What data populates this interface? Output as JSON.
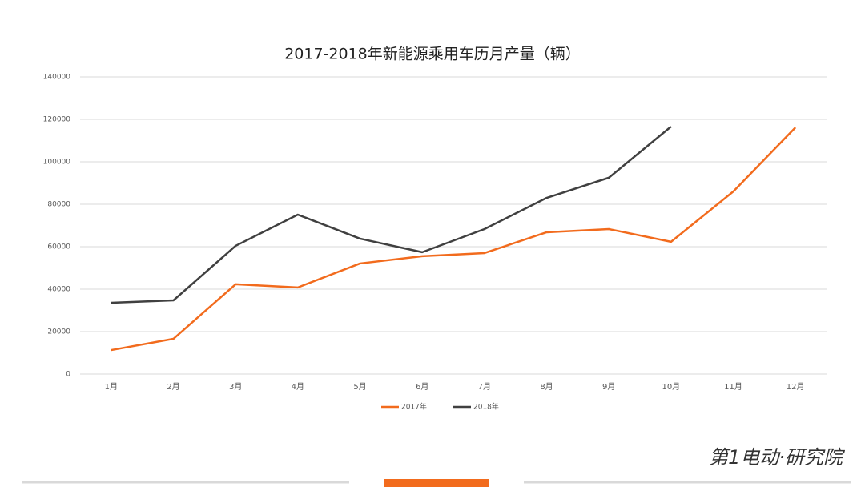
{
  "chart_data": {
    "type": "line",
    "title": "2017-2018年新能源乘用车历月产量（辆）",
    "categories": [
      "1月",
      "2月",
      "3月",
      "4月",
      "5月",
      "6月",
      "7月",
      "8月",
      "9月",
      "10月",
      "11月",
      "12月"
    ],
    "series": [
      {
        "name": "2017年",
        "color": "#f26b1d",
        "values": [
          11300,
          16600,
          42300,
          40800,
          52100,
          55500,
          57000,
          66800,
          68300,
          62300,
          86000,
          116200
        ]
      },
      {
        "name": "2018年",
        "color": "#404040",
        "values": [
          33600,
          34700,
          60400,
          75100,
          63800,
          57400,
          68300,
          83000,
          92500,
          116600,
          null,
          null
        ]
      }
    ],
    "ylim": [
      0,
      140000
    ],
    "yticks": [
      0,
      20000,
      40000,
      60000,
      80000,
      100000,
      120000,
      140000
    ],
    "grid": true,
    "legend": "bottom"
  },
  "brand": "第1电动·研究院"
}
